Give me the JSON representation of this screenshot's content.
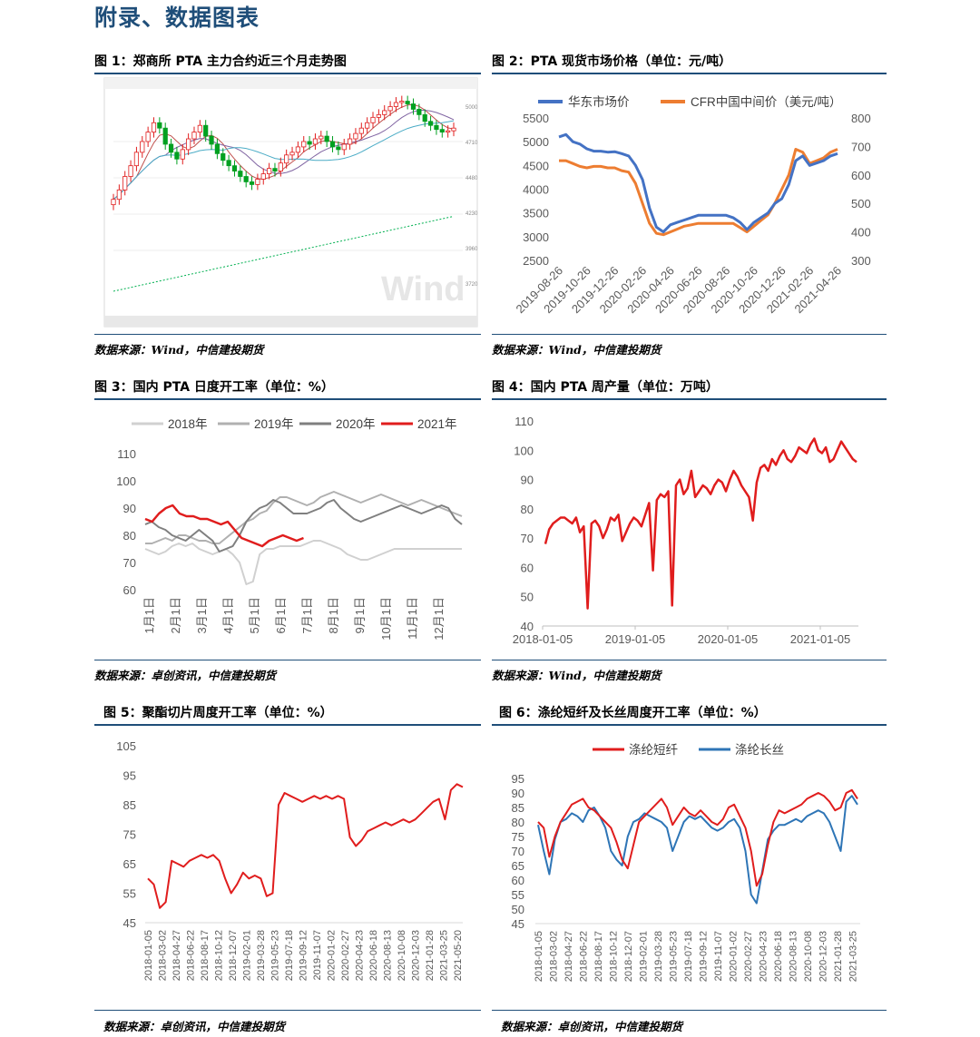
{
  "page": {
    "heading": "附录、数据图表"
  },
  "figures": {
    "f1": {
      "title": "图 1：郑商所 PTA 主力合约近三个月走势图",
      "source": "数据来源：Wind，中信建投期货",
      "watermark": "Wind"
    },
    "f2": {
      "title": "图 2：PTA 现货市场价格（单位：元/吨）",
      "source": "数据来源：Wind，中信建投期货"
    },
    "f3": {
      "title": "图 3：国内 PTA 日度开工率（单位：%）",
      "source": "数据来源：卓创资讯，中信建投期货"
    },
    "f4": {
      "title": "图 4：国内 PTA 周产量（单位：万吨）",
      "source": "数据来源：Wind，中信建投期货"
    },
    "f5": {
      "title": "图 5：聚酯切片周度开工率（单位：%）",
      "source": "数据来源：卓创资讯，中信建投期货"
    },
    "f6": {
      "title": "图 6：涤纶短纤及长丝周度开工率（单位：%）",
      "source": "数据来源：卓创资讯，中信建投期货"
    }
  },
  "chart_data": [
    {
      "id": "fig1",
      "type": "candlestick",
      "note_values": "screenshot of PTA main contract candlesticks; approximate closes",
      "axis_labels": [
        "5000",
        "4710",
        "4480",
        "4230",
        "3960",
        "3720"
      ],
      "closes": [
        4350,
        4420,
        4520,
        4600,
        4700,
        4780,
        4850,
        4920,
        4880,
        4760,
        4700,
        4650,
        4720,
        4800,
        4850,
        4900,
        4820,
        4760,
        4690,
        4640,
        4600,
        4560,
        4520,
        4480,
        4460,
        4500,
        4540,
        4580,
        4560,
        4620,
        4680,
        4700,
        4740,
        4780,
        4760,
        4800,
        4820,
        4780,
        4740,
        4720,
        4760,
        4800,
        4840,
        4880,
        4920,
        4960,
        4980,
        5010,
        5040,
        5070,
        5080,
        5060,
        5020,
        4980,
        4930,
        4900,
        4870,
        4850,
        4860,
        4880
      ]
    },
    {
      "id": "fig2",
      "type": "line",
      "legend": [
        "华东市场价",
        "CFR中国中间价（美元/吨）"
      ],
      "x_ticks": [
        "2019-08-26",
        "2019-10-26",
        "2019-12-26",
        "2020-02-26",
        "2020-04-26",
        "2020-06-26",
        "2020-08-26",
        "2020-10-26",
        "2020-12-26",
        "2021-02-26",
        "2021-04-26"
      ],
      "y_left": {
        "ticks": [
          "2500",
          "3000",
          "3500",
          "4000",
          "4500",
          "5000",
          "5500"
        ],
        "min": 2500,
        "max": 5500
      },
      "y_right": {
        "ticks": [
          "300",
          "400",
          "500",
          "600",
          "700",
          "800"
        ],
        "min": 300,
        "max": 800
      },
      "series": [
        {
          "name": "华东市场价",
          "axis": "left",
          "color": "#4472c4",
          "values": [
            5100,
            5150,
            5000,
            4950,
            4850,
            4800,
            4800,
            4780,
            4790,
            4750,
            4700,
            4500,
            4200,
            3600,
            3200,
            3100,
            3250,
            3300,
            3350,
            3400,
            3450,
            3450,
            3450,
            3450,
            3450,
            3400,
            3300,
            3150,
            3300,
            3400,
            3500,
            3700,
            3800,
            4100,
            4600,
            4700,
            4500,
            4550,
            4600,
            4700,
            4750
          ]
        },
        {
          "name": "CFR中国中间价（美元/吨）",
          "axis": "right",
          "color": "#ed7d31",
          "values": [
            650,
            650,
            640,
            630,
            625,
            630,
            630,
            625,
            625,
            615,
            610,
            570,
            500,
            430,
            395,
            390,
            400,
            410,
            420,
            425,
            430,
            430,
            430,
            430,
            430,
            430,
            415,
            400,
            420,
            440,
            460,
            500,
            550,
            600,
            690,
            680,
            640,
            650,
            660,
            680,
            690
          ]
        }
      ]
    },
    {
      "id": "fig3",
      "type": "line",
      "legend": [
        "2018年",
        "2019年",
        "2020年",
        "2021年"
      ],
      "x_ticks": [
        "1月1日",
        "2月1日",
        "3月1日",
        "4月1日",
        "5月1日",
        "6月1日",
        "7月1日",
        "8月1日",
        "9月1日",
        "10月1日",
        "11月1日",
        "12月1日"
      ],
      "y": {
        "ticks": [
          "60",
          "70",
          "80",
          "90",
          "100",
          "110"
        ],
        "min": 60,
        "max": 110
      },
      "series": [
        {
          "name": "2018年",
          "color": "#d0d0d0",
          "values": [
            75,
            74,
            73,
            74,
            76,
            77,
            76,
            77,
            75,
            74,
            73,
            74,
            75,
            73,
            70,
            62,
            63,
            73,
            75,
            75,
            76,
            76,
            76,
            76,
            77,
            78,
            78,
            77,
            76,
            75,
            73,
            72,
            71,
            71,
            72,
            73,
            74,
            75,
            75,
            75,
            75,
            75,
            75,
            75,
            75,
            75,
            75,
            75
          ]
        },
        {
          "name": "2019年",
          "color": "#b0b0b0",
          "values": [
            77,
            77,
            78,
            79,
            78,
            80,
            80,
            79,
            78,
            78,
            77,
            77,
            79,
            81,
            83,
            85,
            86,
            88,
            89,
            92,
            94,
            94,
            93,
            92,
            91,
            92,
            94,
            95,
            96,
            95,
            94,
            93,
            92,
            93,
            94,
            95,
            94,
            93,
            92,
            91,
            92,
            93,
            92,
            91,
            90,
            89,
            88,
            87
          ]
        },
        {
          "name": "2020年",
          "color": "#7f7f7f",
          "values": [
            84,
            85,
            83,
            82,
            80,
            79,
            78,
            80,
            82,
            80,
            78,
            74,
            75,
            76,
            80,
            85,
            88,
            90,
            91,
            93,
            92,
            90,
            88,
            88,
            88,
            89,
            90,
            92,
            93,
            90,
            88,
            86,
            85,
            86,
            87,
            88,
            89,
            90,
            91,
            90,
            89,
            88,
            89,
            90,
            91,
            90,
            86,
            84
          ]
        },
        {
          "name": "2021年",
          "color": "#e01d1d",
          "values": [
            86,
            85,
            88,
            90,
            91,
            88,
            87,
            87,
            86,
            86,
            85,
            84,
            85,
            82,
            79,
            78,
            77,
            76,
            78,
            79,
            80,
            79,
            78,
            79
          ]
        }
      ]
    },
    {
      "id": "fig4",
      "type": "line",
      "x_ticks": [
        "2018-01-05",
        "2019-01-05",
        "2020-01-05",
        "2021-01-05"
      ],
      "y": {
        "ticks": [
          "40",
          "50",
          "60",
          "70",
          "80",
          "90",
          "100",
          "110"
        ],
        "min": 40,
        "max": 110
      },
      "series": [
        {
          "name": "",
          "color": "#e01d1d",
          "values": [
            68,
            73,
            75,
            76,
            77,
            77,
            76,
            75,
            77,
            72,
            74,
            46,
            75,
            76,
            74,
            70,
            73,
            77,
            76,
            78,
            69,
            72,
            75,
            77,
            76,
            74,
            78,
            82,
            59,
            83,
            85,
            84,
            86,
            47,
            88,
            90,
            85,
            87,
            93,
            84,
            86,
            88,
            87,
            85,
            88,
            90,
            89,
            86,
            90,
            93,
            91,
            88,
            86,
            84,
            76,
            89,
            94,
            95,
            93,
            97,
            95,
            98,
            100,
            97,
            96,
            98,
            101,
            100,
            99,
            102,
            104,
            100,
            99,
            101,
            96,
            97,
            100,
            103,
            101,
            99,
            97,
            96
          ]
        }
      ]
    },
    {
      "id": "fig5",
      "type": "line",
      "x_ticks": [
        "2018-01-05",
        "2018-03-02",
        "2018-04-27",
        "2018-06-22",
        "2018-08-17",
        "2018-10-12",
        "2018-12-07",
        "2019-02-01",
        "2019-03-28",
        "2019-05-23",
        "2019-07-18",
        "2019-09-12",
        "2019-11-07",
        "2020-01-02",
        "2020-02-27",
        "2020-04-23",
        "2020-06-18",
        "2020-08-13",
        "2020-10-08",
        "2020-12-03",
        "2021-01-28",
        "2021-03-25",
        "2021-05-20"
      ],
      "y": {
        "ticks": [
          "45",
          "55",
          "65",
          "75",
          "85",
          "95",
          "105"
        ],
        "min": 45,
        "max": 105
      },
      "series": [
        {
          "name": "",
          "color": "#e01d1d",
          "values": [
            60,
            58,
            50,
            52,
            66,
            65,
            64,
            66,
            67,
            68,
            67,
            68,
            66,
            60,
            55,
            58,
            62,
            60,
            61,
            60,
            54,
            55,
            85,
            89,
            88,
            87,
            86,
            87,
            88,
            87,
            88,
            87,
            88,
            87,
            74,
            71,
            73,
            76,
            77,
            78,
            79,
            78,
            79,
            80,
            79,
            80,
            82,
            84,
            86,
            87,
            80,
            90,
            92,
            91
          ]
        }
      ]
    },
    {
      "id": "fig6",
      "type": "line",
      "legend": [
        "涤纶短纤",
        "涤纶长丝"
      ],
      "x_ticks": [
        "2018-01-05",
        "2018-03-02",
        "2018-04-27",
        "2018-06-22",
        "2018-08-17",
        "2018-10-12",
        "2018-12-07",
        "2019-02-01",
        "2019-03-28",
        "2019-05-23",
        "2019-07-18",
        "2019-09-12",
        "2019-11-07",
        "2020-01-02",
        "2020-02-27",
        "2020-04-23",
        "2020-06-18",
        "2020-08-13",
        "2020-10-08",
        "2020-12-03",
        "2021-01-28",
        "2021-03-25"
      ],
      "y": {
        "ticks": [
          "45",
          "50",
          "55",
          "60",
          "65",
          "70",
          "75",
          "80",
          "85",
          "90",
          "95"
        ],
        "min": 45,
        "max": 95
      },
      "series": [
        {
          "name": "涤纶短纤",
          "color": "#e01d1d",
          "values": [
            80,
            78,
            68,
            75,
            80,
            83,
            86,
            87,
            88,
            85,
            84,
            82,
            80,
            78,
            73,
            67,
            64,
            72,
            80,
            82,
            84,
            86,
            88,
            85,
            79,
            82,
            85,
            83,
            82,
            84,
            82,
            80,
            79,
            81,
            85,
            86,
            82,
            78,
            70,
            58,
            62,
            72,
            80,
            84,
            83,
            84,
            85,
            86,
            88,
            89,
            90,
            89,
            87,
            84,
            85,
            90,
            91,
            88
          ]
        },
        {
          "name": "涤纶长丝",
          "color": "#2e75b6",
          "values": [
            79,
            70,
            62,
            74,
            80,
            81,
            83,
            82,
            80,
            84,
            85,
            82,
            78,
            70,
            67,
            65,
            75,
            80,
            81,
            83,
            82,
            81,
            80,
            78,
            70,
            75,
            80,
            82,
            81,
            82,
            80,
            78,
            77,
            78,
            80,
            81,
            78,
            70,
            55,
            52,
            63,
            74,
            77,
            79,
            79,
            80,
            81,
            80,
            82,
            83,
            84,
            83,
            80,
            75,
            70,
            87,
            89,
            86
          ]
        }
      ]
    }
  ]
}
